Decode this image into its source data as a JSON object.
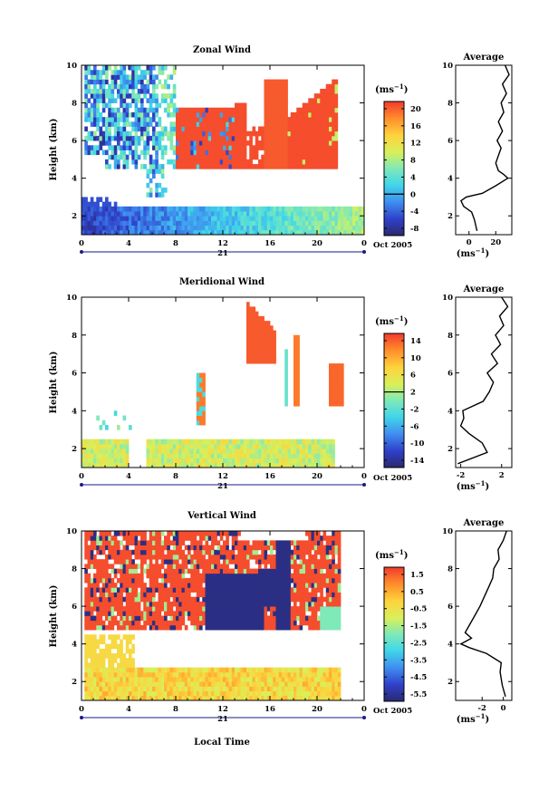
{
  "figure": {
    "xlabel": "Local Time",
    "date_label": "Oct 2005",
    "day_label": "21",
    "cb_unit": "(ms",
    "cb_unit_sup": "−1",
    "avg_title": "Average"
  },
  "chart_data": [
    {
      "type": "heatmap",
      "title": "Zonal Wind",
      "ylabel": "Height (km)",
      "xlim": [
        0,
        24
      ],
      "ylim": [
        1,
        10
      ],
      "x_ticks": [
        "0",
        "4",
        "8",
        "12",
        "16",
        "20",
        "0"
      ],
      "y_ticks": [
        "2",
        "4",
        "6",
        "8",
        "10"
      ],
      "colorbar": {
        "range": [
          -8,
          22
        ],
        "ticks": [
          "20",
          "16",
          "12",
          "8",
          "4",
          "0",
          "-4",
          "-8"
        ],
        "mark": 0
      }
    },
    {
      "type": "heatmap",
      "title": "Meridional Wind",
      "ylabel": "Height (km)",
      "xlim": [
        0,
        24
      ],
      "ylim": [
        1,
        10
      ],
      "x_ticks": [
        "0",
        "4",
        "8",
        "12",
        "16",
        "20",
        "0"
      ],
      "y_ticks": [
        "2",
        "4",
        "6",
        "8",
        "10"
      ],
      "colorbar": {
        "range": [
          -16,
          16
        ],
        "ticks": [
          "14",
          "10",
          "6",
          "2",
          "-2",
          "-6",
          "-10",
          "-14"
        ],
        "mark": 2
      }
    },
    {
      "type": "heatmap",
      "title": "Vertical Wind",
      "ylabel": "Height (km)",
      "xlim": [
        0,
        24
      ],
      "ylim": [
        1,
        10
      ],
      "x_ticks": [
        "0",
        "4",
        "8",
        "12",
        "16",
        "20",
        "0"
      ],
      "y_ticks": [
        "2",
        "4",
        "6",
        "8",
        "10"
      ],
      "colorbar": {
        "range": [
          -6.5,
          2.0
        ],
        "ticks": [
          "1.5",
          "0.5",
          "-0.5",
          "-1.5",
          "-2.5",
          "-3.5",
          "-4.5",
          "-5.5"
        ]
      }
    },
    {
      "type": "line",
      "title": "Average",
      "ylim": [
        1,
        10
      ],
      "x_ticks": [
        "0",
        "20"
      ],
      "xlim": [
        -10,
        32
      ],
      "y_ticks": [
        "2",
        "4",
        "6",
        "8",
        "10"
      ],
      "y": [
        1.2,
        1.8,
        2.2,
        2.5,
        2.8,
        3.0,
        3.2,
        3.6,
        4.0,
        4.2,
        4.4,
        4.8,
        5.2,
        5.6,
        6.0,
        6.5,
        7.0,
        7.5,
        8.0,
        8.5,
        9.0,
        9.5,
        10.0
      ],
      "x": [
        6,
        4,
        2,
        -4,
        -6,
        -2,
        10,
        20,
        29,
        26,
        22,
        20,
        22,
        24,
        21,
        25,
        22,
        26,
        24,
        28,
        25,
        30,
        27
      ]
    },
    {
      "type": "line",
      "title": "Average",
      "ylim": [
        1,
        10
      ],
      "x_ticks": [
        "-2",
        "2"
      ],
      "xlim": [
        -2.5,
        3.0
      ],
      "y_ticks": [
        "2",
        "4",
        "6",
        "8",
        "10"
      ],
      "y": [
        1.2,
        1.8,
        2.3,
        2.8,
        3.2,
        3.6,
        4.0,
        4.5,
        5.0,
        5.5,
        6.0,
        6.5,
        7.0,
        7.5,
        8.0,
        8.5,
        9.0,
        9.5,
        10.0
      ],
      "x": [
        -2.3,
        0.6,
        0.1,
        -1.2,
        -2.0,
        -1.7,
        -1.8,
        0.2,
        0.8,
        1.2,
        0.6,
        1.6,
        1.0,
        1.9,
        1.4,
        2.2,
        1.8,
        2.6,
        2.0
      ]
    },
    {
      "type": "line",
      "title": "Average",
      "ylim": [
        1,
        10
      ],
      "x_ticks": [
        "-2",
        "0"
      ],
      "xlim": [
        -4.5,
        0.8
      ],
      "y_ticks": [
        "2",
        "4",
        "6",
        "8",
        "10"
      ],
      "y": [
        1.2,
        1.8,
        2.5,
        3.0,
        3.5,
        3.8,
        4.0,
        4.3,
        4.6,
        5.0,
        5.5,
        6.0,
        6.5,
        7.0,
        7.5,
        8.0,
        8.5,
        9.0,
        9.5,
        10.0
      ],
      "x": [
        0.2,
        -0.1,
        -0.3,
        -0.2,
        -1.6,
        -3.2,
        -4.0,
        -3.0,
        -3.6,
        -3.2,
        -2.7,
        -2.2,
        -1.8,
        -1.4,
        -1.0,
        -0.9,
        -0.4,
        -0.5,
        0.0,
        0.3
      ]
    }
  ]
}
